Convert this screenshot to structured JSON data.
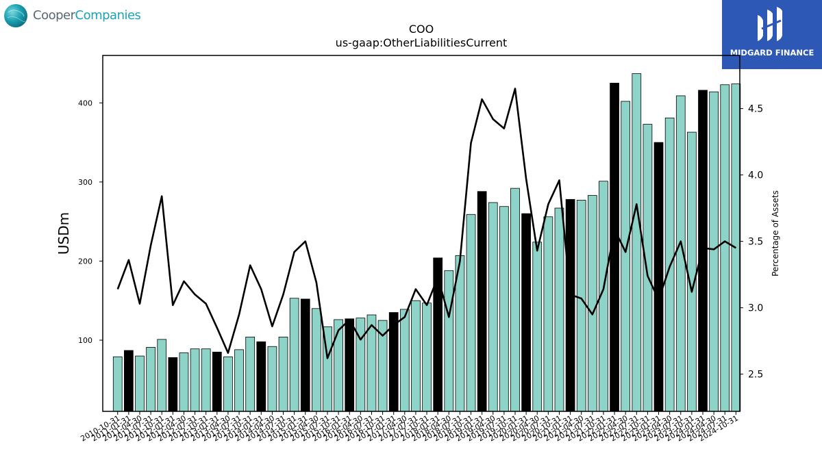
{
  "brand_left": {
    "part1": "Cooper",
    "part2": "Companies",
    "color1": "#5a6770",
    "color2": "#1aa3b8"
  },
  "brand_right": {
    "label": "MIDGARD FINANCE",
    "bg": "#2d58b5"
  },
  "chart_data": {
    "type": "bar",
    "title": "COO",
    "subtitle": "us-gaap:OtherLiabilitiesCurrent",
    "ylabel": "USDm",
    "y2label": "Percentage of Assets",
    "ylim": [
      10,
      460
    ],
    "y2lim": [
      2.22,
      4.9
    ],
    "yticks": [
      100,
      200,
      300,
      400
    ],
    "y2ticks": [
      "2.5",
      "3.0",
      "3.5",
      "4.0",
      "4.5"
    ],
    "colors": {
      "annual": "#000000",
      "quarter": "#8dd3c7",
      "line": "#000000"
    },
    "categories": [
      "2010-10-31",
      "2011-01-31",
      "2011-04-30",
      "2011-07-31",
      "2011-10-31",
      "2012-01-31",
      "2012-04-30",
      "2012-07-31",
      "2012-10-31",
      "2013-01-31",
      "2013-04-30",
      "2013-07-31",
      "2013-10-31",
      "2014-01-31",
      "2014-04-30",
      "2014-07-31",
      "2014-10-31",
      "2015-01-31",
      "2015-04-30",
      "2015-07-31",
      "2015-10-31",
      "2016-01-31",
      "2016-04-30",
      "2016-07-31",
      "2016-10-31",
      "2017-01-31",
      "2017-04-30",
      "2017-07-31",
      "2017-10-31",
      "2018-01-31",
      "2018-04-30",
      "2018-07-31",
      "2018-10-31",
      "2019-01-31",
      "2019-04-30",
      "2019-07-31",
      "2019-10-31",
      "2020-01-31",
      "2020-04-30",
      "2020-07-31",
      "2020-10-31",
      "2021-01-31",
      "2021-04-30",
      "2021-07-31",
      "2021-10-31",
      "2022-01-31",
      "2022-04-30",
      "2022-07-31",
      "2022-10-31",
      "2023-01-31",
      "2023-04-30",
      "2023-07-31",
      "2023-10-31",
      "2024-01-31",
      "2024-04-30",
      "2024-07-31",
      "2024-10-31"
    ],
    "values": [
      79,
      87,
      80,
      91,
      101,
      78,
      84,
      89,
      89,
      85,
      79,
      88,
      104,
      98,
      92,
      104,
      153,
      152,
      140,
      117,
      126,
      127,
      128,
      132,
      125,
      135,
      139,
      150,
      147,
      204,
      188,
      207,
      259,
      288,
      274,
      269,
      292,
      260,
      224,
      256,
      267,
      278,
      277,
      283,
      301,
      425,
      402,
      437,
      373,
      350,
      381,
      409,
      363,
      416,
      414,
      423,
      424
    ],
    "annual": [
      false,
      true,
      false,
      false,
      false,
      true,
      false,
      false,
      false,
      true,
      false,
      false,
      false,
      true,
      false,
      false,
      false,
      true,
      false,
      false,
      false,
      true,
      false,
      false,
      false,
      true,
      false,
      false,
      false,
      true,
      false,
      false,
      false,
      true,
      false,
      false,
      false,
      true,
      false,
      false,
      false,
      true,
      false,
      false,
      false,
      true,
      false,
      false,
      false,
      true,
      false,
      false,
      false,
      true,
      false,
      false,
      false
    ],
    "pct_assets": [
      3.14,
      3.36,
      3.03,
      3.47,
      3.84,
      3.02,
      3.2,
      3.1,
      3.03,
      2.85,
      2.66,
      2.95,
      3.32,
      3.14,
      2.86,
      3.1,
      3.42,
      3.5,
      3.19,
      2.62,
      2.83,
      2.91,
      2.76,
      2.87,
      2.79,
      2.87,
      2.93,
      3.14,
      3.02,
      3.23,
      2.93,
      3.35,
      4.24,
      4.57,
      4.42,
      4.35,
      4.65,
      3.97,
      3.43,
      3.78,
      3.96,
      3.1,
      3.07,
      2.95,
      3.14,
      3.59,
      3.42,
      3.78,
      3.24,
      3.06,
      3.31,
      3.5,
      3.12,
      3.45,
      3.44,
      3.5,
      3.45
    ]
  }
}
